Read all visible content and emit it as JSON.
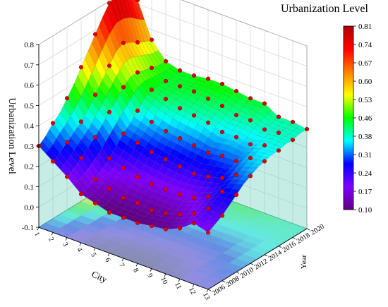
{
  "chart_data": {
    "type": "surface3d",
    "title": "Urbanization Level",
    "zlabel": "Urbanization Level",
    "xlabel": "City",
    "ylabel": "Year",
    "x_ticks": [
      "1",
      "2",
      "3",
      "4",
      "5",
      "6",
      "7",
      "8",
      "9",
      "10",
      "11",
      "12",
      "13"
    ],
    "y_ticks": [
      "2006",
      "2008",
      "2010",
      "2012",
      "2014",
      "2016",
      "2018",
      "2020"
    ],
    "z_ticks": [
      "-0.1",
      "0.0",
      "0.1",
      "0.2",
      "0.3",
      "0.4",
      "0.5",
      "0.6",
      "0.7",
      "0.8"
    ],
    "zlim": [
      -0.1,
      0.8
    ],
    "colorbar": {
      "ticks": [
        "0.81",
        "0.74",
        "0.67",
        "0.60",
        "0.53",
        "0.46",
        "0.38",
        "0.31",
        "0.24",
        "0.17",
        "0.10"
      ],
      "range": [
        0.1,
        0.81
      ],
      "colors": [
        "#b00000",
        "#ff0000",
        "#ff8000",
        "#ffff00",
        "#00ff00",
        "#00ffff",
        "#0000ff",
        "#8000ff",
        "#600080"
      ]
    },
    "city_order": [
      1,
      2,
      3,
      4,
      5,
      6,
      7,
      8,
      9,
      10,
      11,
      12,
      13
    ],
    "years": [
      2006,
      2007,
      2008,
      2009,
      2010,
      2011,
      2012,
      2013,
      2014,
      2015,
      2016,
      2017,
      2018,
      2019,
      2020
    ],
    "z_values": [
      [
        0.3,
        0.33,
        0.37,
        0.4,
        0.45,
        0.5,
        0.56,
        0.62,
        0.68,
        0.74,
        0.79,
        0.81,
        0.8,
        0.76,
        0.72
      ],
      [
        0.25,
        0.27,
        0.3,
        0.33,
        0.36,
        0.4,
        0.45,
        0.5,
        0.55,
        0.6,
        0.62,
        0.6,
        0.58,
        0.56,
        0.55
      ],
      [
        0.2,
        0.22,
        0.25,
        0.28,
        0.31,
        0.35,
        0.39,
        0.43,
        0.47,
        0.5,
        0.5,
        0.49,
        0.48,
        0.47,
        0.47
      ],
      [
        0.14,
        0.15,
        0.17,
        0.2,
        0.23,
        0.27,
        0.31,
        0.34,
        0.38,
        0.42,
        0.44,
        0.44,
        0.44,
        0.44,
        0.45
      ],
      [
        0.12,
        0.13,
        0.15,
        0.18,
        0.21,
        0.25,
        0.29,
        0.32,
        0.35,
        0.39,
        0.42,
        0.43,
        0.44,
        0.44,
        0.45
      ],
      [
        0.1,
        0.11,
        0.13,
        0.16,
        0.19,
        0.23,
        0.27,
        0.3,
        0.33,
        0.37,
        0.4,
        0.42,
        0.44,
        0.45,
        0.46
      ],
      [
        0.1,
        0.11,
        0.13,
        0.15,
        0.18,
        0.22,
        0.26,
        0.29,
        0.32,
        0.36,
        0.39,
        0.41,
        0.43,
        0.45,
        0.46
      ],
      [
        0.1,
        0.11,
        0.12,
        0.15,
        0.18,
        0.21,
        0.25,
        0.28,
        0.31,
        0.35,
        0.38,
        0.4,
        0.42,
        0.44,
        0.45
      ],
      [
        0.11,
        0.12,
        0.13,
        0.15,
        0.18,
        0.21,
        0.24,
        0.27,
        0.3,
        0.33,
        0.36,
        0.38,
        0.4,
        0.42,
        0.44
      ],
      [
        0.12,
        0.13,
        0.15,
        0.17,
        0.19,
        0.22,
        0.25,
        0.28,
        0.31,
        0.34,
        0.36,
        0.38,
        0.4,
        0.42,
        0.44
      ],
      [
        0.15,
        0.16,
        0.18,
        0.2,
        0.22,
        0.24,
        0.27,
        0.29,
        0.31,
        0.33,
        0.35,
        0.37,
        0.38,
        0.39,
        0.4
      ],
      [
        0.2,
        0.21,
        0.23,
        0.25,
        0.27,
        0.29,
        0.31,
        0.33,
        0.35,
        0.36,
        0.37,
        0.38,
        0.39,
        0.39,
        0.4
      ],
      [
        0.18,
        0.2,
        0.22,
        0.25,
        0.28,
        0.31,
        0.33,
        0.35,
        0.36,
        0.37,
        0.37,
        0.38,
        0.38,
        0.39,
        0.39
      ]
    ],
    "marker_color": "#e00000",
    "floor_contour": true,
    "grid": true
  }
}
